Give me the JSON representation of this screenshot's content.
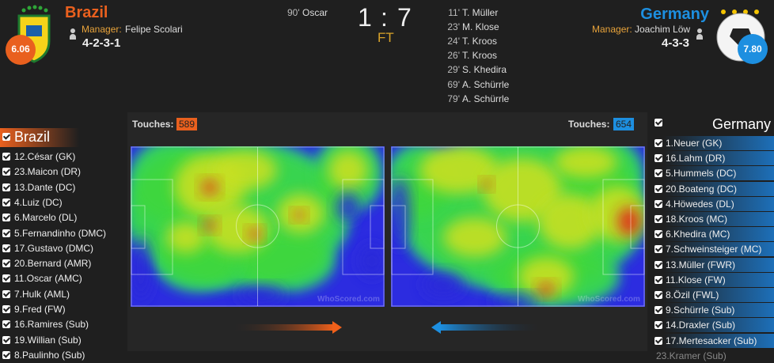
{
  "home": {
    "name": "Brazil",
    "rating": "6.06",
    "manager_label": "Manager:",
    "manager": "Felipe Scolari",
    "formation": "4-2-3-1",
    "goals": [
      {
        "minute": "90'",
        "player": "Oscar"
      }
    ],
    "touches_label": "Touches:",
    "touches": 589,
    "players": [
      {
        "label": "12.César (GK)",
        "selected": true
      },
      {
        "label": "23.Maicon (DR)",
        "selected": true
      },
      {
        "label": "13.Dante (DC)",
        "selected": true
      },
      {
        "label": "4.Luiz (DC)",
        "selected": true
      },
      {
        "label": "6.Marcelo (DL)",
        "selected": true
      },
      {
        "label": "5.Fernandinho (DMC)",
        "selected": true
      },
      {
        "label": "17.Gustavo (DMC)",
        "selected": true
      },
      {
        "label": "20.Bernard (AMR)",
        "selected": true
      },
      {
        "label": "11.Oscar (AMC)",
        "selected": true
      },
      {
        "label": "7.Hulk (AML)",
        "selected": true
      },
      {
        "label": "9.Fred (FW)",
        "selected": true
      },
      {
        "label": "16.Ramires (Sub)",
        "selected": true
      },
      {
        "label": "19.Willian (Sub)",
        "selected": true
      },
      {
        "label": "8.Paulinho (Sub)",
        "selected": true
      }
    ]
  },
  "away": {
    "name": "Germany",
    "rating": "7.80",
    "manager_label": "Manager:",
    "manager": "Joachim Löw",
    "formation": "4-3-3",
    "goals": [
      {
        "minute": "11'",
        "player": "T. Müller"
      },
      {
        "minute": "23'",
        "player": "M. Klose"
      },
      {
        "minute": "24'",
        "player": "T. Kroos"
      },
      {
        "minute": "26'",
        "player": "T. Kroos"
      },
      {
        "minute": "29'",
        "player": "S. Khedira"
      },
      {
        "minute": "69'",
        "player": "A. Schürrle"
      },
      {
        "minute": "79'",
        "player": "A. Schürrle"
      }
    ],
    "touches_label": "Touches:",
    "touches": 654,
    "players": [
      {
        "label": "1.Neuer (GK)",
        "selected": true
      },
      {
        "label": "16.Lahm (DR)",
        "selected": true
      },
      {
        "label": "5.Hummels (DC)",
        "selected": true
      },
      {
        "label": "20.Boateng (DC)",
        "selected": true
      },
      {
        "label": "4.Höwedes (DL)",
        "selected": true
      },
      {
        "label": "18.Kroos (MC)",
        "selected": true
      },
      {
        "label": "6.Khedira (MC)",
        "selected": true
      },
      {
        "label": "7.Schweinsteiger (MC)",
        "selected": true
      },
      {
        "label": "13.Müller (FWR)",
        "selected": true
      },
      {
        "label": "11.Klose (FW)",
        "selected": true
      },
      {
        "label": "8.Özil (FWL)",
        "selected": true
      },
      {
        "label": "9.Schürrle (Sub)",
        "selected": true
      },
      {
        "label": "14.Draxler (Sub)",
        "selected": true
      },
      {
        "label": "17.Mertesacker (Sub)",
        "selected": true
      },
      {
        "label": "23.Kramer (Sub)",
        "selected": false
      }
    ]
  },
  "score": {
    "home": 1,
    "separator": ":",
    "away": 7,
    "status": "FT"
  },
  "watermark": "WhoScored.com"
}
